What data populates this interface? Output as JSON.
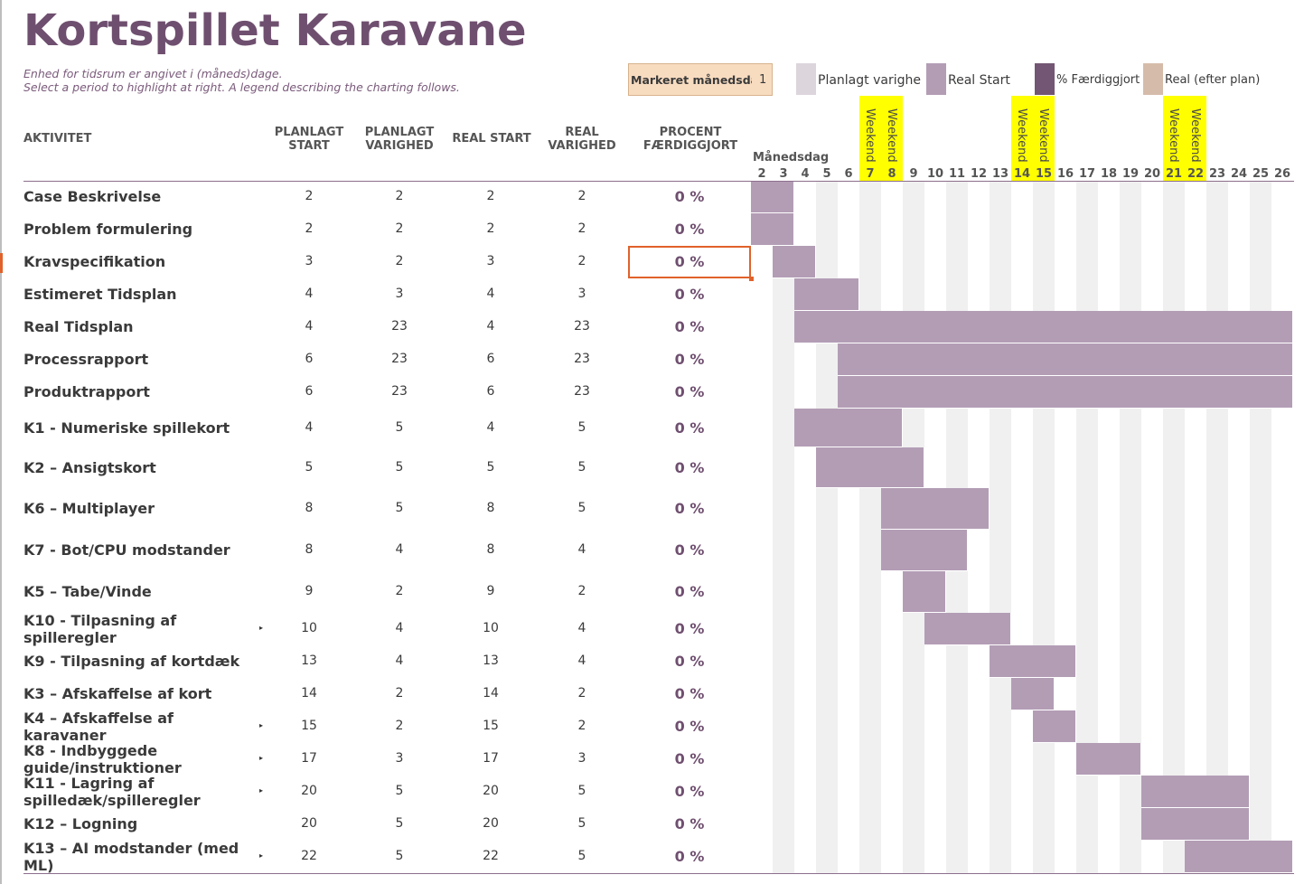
{
  "title": "Kortspillet Karavane",
  "subtitle_line1": "Enhed for tidsrum er angivet i (måneds)dage.",
  "subtitle_line2": "Select a period to highlight at right.  A legend describing the charting follows.",
  "highlight": {
    "label": "Markeret månedsdag",
    "value": "1"
  },
  "legend": [
    {
      "label": "Planlagt varighed",
      "color": "#dcd5dc",
      "icon": "planned-duration-swatch"
    },
    {
      "label": "Real Start",
      "color": "#b39db5",
      "icon": "real-start-swatch"
    },
    {
      "label": "% Færdiggjort",
      "color": "#735673",
      "icon": "percent-complete-swatch"
    },
    {
      "label": "Real (efter plan)",
      "color": "#d5bcaa",
      "icon": "real-after-plan-swatch"
    }
  ],
  "columns": {
    "activity": "AKTIVITET",
    "plan_start": [
      "PLANLAGT",
      "START"
    ],
    "plan_duration": [
      "PLANLAGT",
      "VARIGHED"
    ],
    "real_start": "REAL START",
    "real_duration": [
      "REAL",
      "VARIGHED"
    ],
    "percent": [
      "PROCENT",
      "FÆRDIGGJORT"
    ]
  },
  "month_day_label": "Månedsdag",
  "weekend_label": "Weekend",
  "days": [
    2,
    3,
    4,
    5,
    6,
    7,
    8,
    9,
    10,
    11,
    12,
    13,
    14,
    15,
    16,
    17,
    18,
    19,
    20,
    21,
    22,
    23,
    24,
    25,
    26
  ],
  "weekend_days": [
    7,
    8,
    14,
    15,
    21,
    22
  ],
  "rows": [
    {
      "activity": "Case Beskrivelse",
      "plan_start": "2",
      "plan_duration": "2",
      "real_start": "2",
      "real_duration": "2",
      "percent": "0 %"
    },
    {
      "activity": "Problem formulering",
      "plan_start": "2",
      "plan_duration": "2",
      "real_start": "2",
      "real_duration": "2",
      "percent": "0 %"
    },
    {
      "activity": "Kravspecifikation",
      "plan_start": "3",
      "plan_duration": "2",
      "real_start": "3",
      "real_duration": "2",
      "percent": "0 %"
    },
    {
      "activity": "Estimeret Tidsplan",
      "plan_start": "4",
      "plan_duration": "3",
      "real_start": "4",
      "real_duration": "3",
      "percent": "0 %"
    },
    {
      "activity": "Real Tidsplan",
      "plan_start": "4",
      "plan_duration": "23",
      "real_start": "4",
      "real_duration": "23",
      "percent": "0 %"
    },
    {
      "activity": "Processrapport",
      "plan_start": "6",
      "plan_duration": "23",
      "real_start": "6",
      "real_duration": "23",
      "percent": "0 %"
    },
    {
      "activity": "Produktrapport",
      "plan_start": "6",
      "plan_duration": "23",
      "real_start": "6",
      "real_duration": "23",
      "percent": "0 %"
    },
    {
      "activity": "K1 - Numeriske spillekort",
      "plan_start": "4",
      "plan_duration": "5",
      "real_start": "4",
      "real_duration": "5",
      "percent": "0 %"
    },
    {
      "activity": "K2 – Ansigtskort",
      "plan_start": "5",
      "plan_duration": "5",
      "real_start": "5",
      "real_duration": "5",
      "percent": "0 %"
    },
    {
      "activity": "K6 – Multiplayer",
      "plan_start": "8",
      "plan_duration": "5",
      "real_start": "8",
      "real_duration": "5",
      "percent": "0 %"
    },
    {
      "activity": "K7 - Bot/CPU modstander",
      "plan_start": "8",
      "plan_duration": "4",
      "real_start": "8",
      "real_duration": "4",
      "percent": "0 %"
    },
    {
      "activity": "K5 – Tabe/Vinde",
      "plan_start": "9",
      "plan_duration": "2",
      "real_start": "9",
      "real_duration": "2",
      "percent": "0 %"
    },
    {
      "activity": "K10 - Tilpasning af spilleregler",
      "plan_start": "10",
      "plan_duration": "4",
      "real_start": "10",
      "real_duration": "4",
      "percent": "0 %"
    },
    {
      "activity": "K9 - Tilpasning af kortdæk",
      "plan_start": "13",
      "plan_duration": "4",
      "real_start": "13",
      "real_duration": "4",
      "percent": "0 %"
    },
    {
      "activity": "K3 – Afskaffelse af kort",
      "plan_start": "14",
      "plan_duration": "2",
      "real_start": "14",
      "real_duration": "2",
      "percent": "0 %"
    },
    {
      "activity": "K4 – Afskaffelse af karavaner",
      "plan_start": "15",
      "plan_duration": "2",
      "real_start": "15",
      "real_duration": "2",
      "percent": "0 %"
    },
    {
      "activity": "K8 - Indbyggede guide/instruktioner",
      "plan_start": "17",
      "plan_duration": "3",
      "real_start": "17",
      "real_duration": "3",
      "percent": "0 %"
    },
    {
      "activity": "K11 - Lagring af spilledæk/spilleregler",
      "plan_start": "20",
      "plan_duration": "5",
      "real_start": "20",
      "real_duration": "5",
      "percent": "0 %"
    },
    {
      "activity": "K12 – Logning",
      "plan_start": "20",
      "plan_duration": "5",
      "real_start": "20",
      "real_duration": "5",
      "percent": "0 %"
    },
    {
      "activity": "K13 – AI modstander (med ML)",
      "plan_start": "22",
      "plan_duration": "5",
      "real_start": "22",
      "real_duration": "5",
      "percent": "0 %"
    }
  ]
}
